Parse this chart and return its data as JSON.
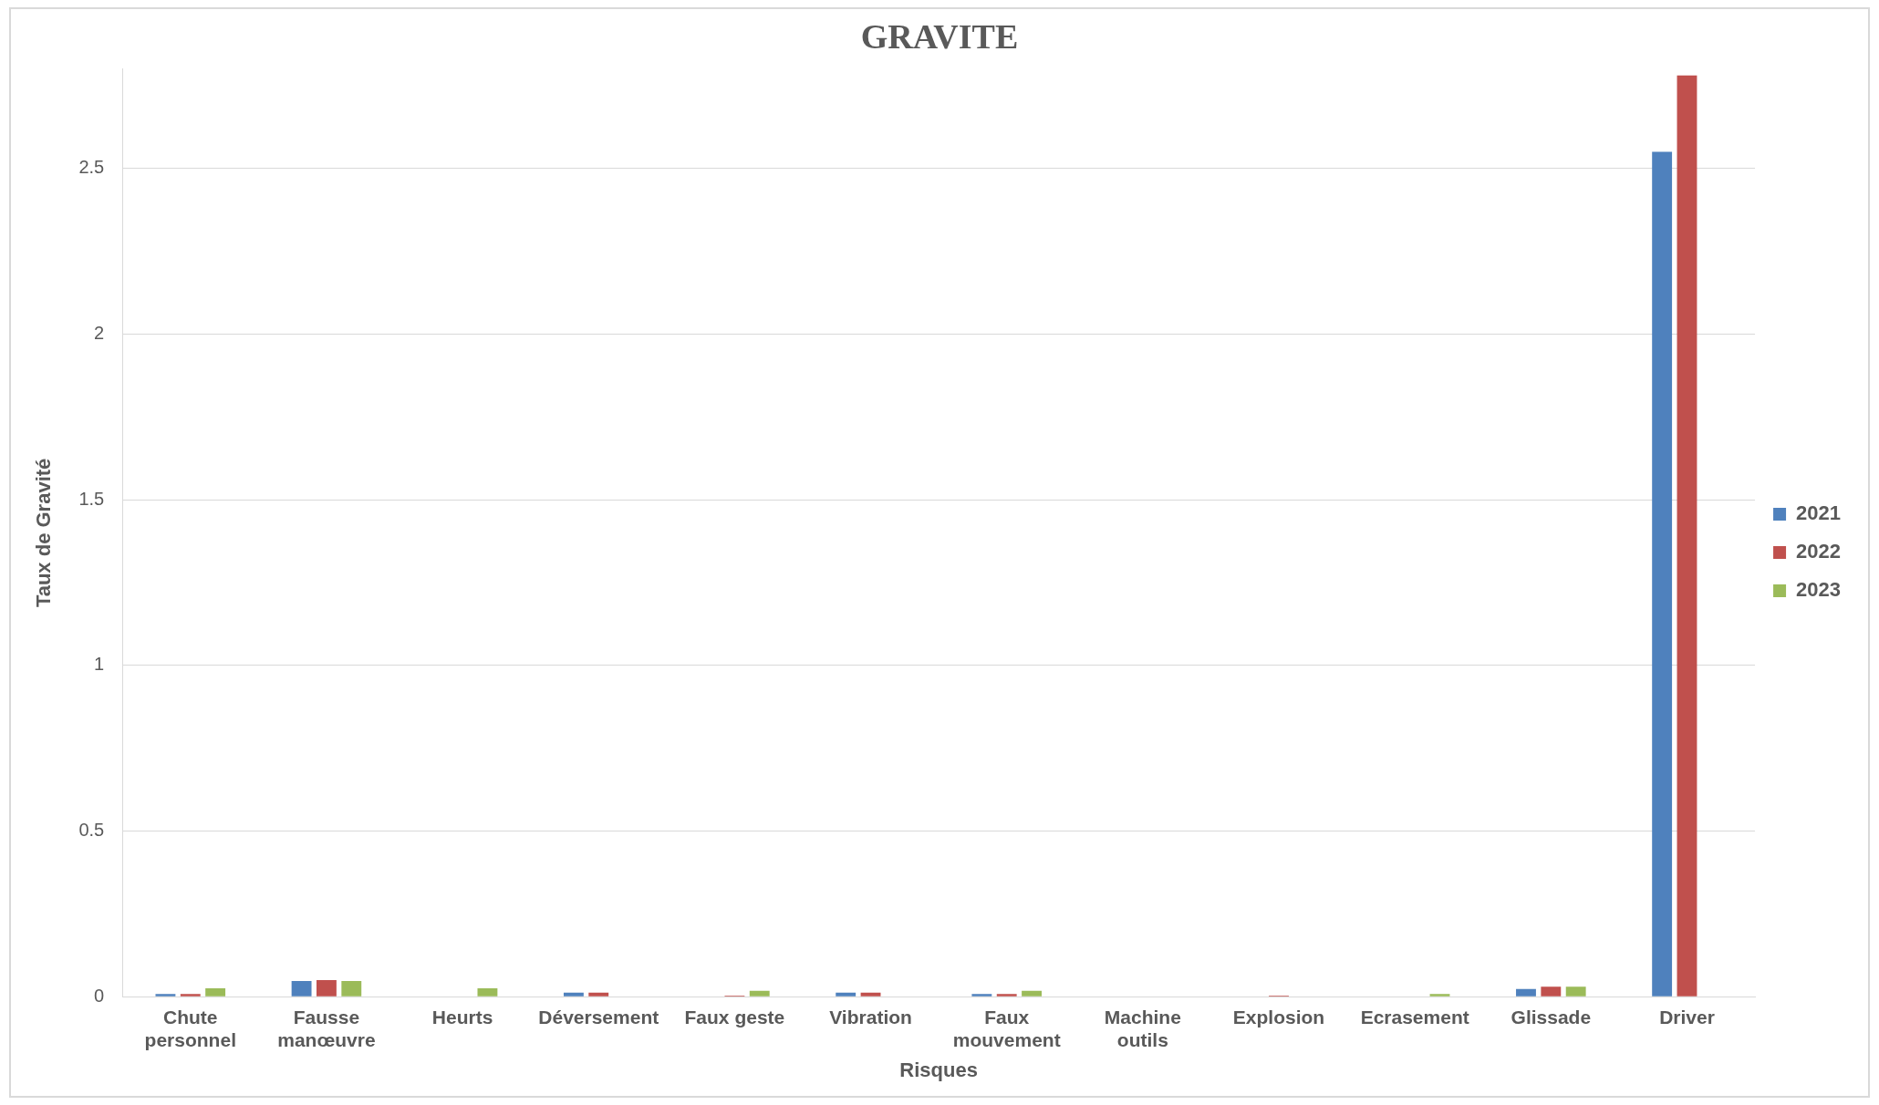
{
  "chart_data": {
    "type": "bar",
    "title": "GRAVITE",
    "xlabel": "Risques",
    "ylabel": "Taux de Gravité",
    "categories": [
      "Chute personnel",
      "Fausse manœuvre",
      "Heurts",
      "Déversement",
      "Faux geste",
      "Vibration",
      "Faux mouvement",
      "Machine outils",
      "Explosion",
      "Ecrasement",
      "Glissade",
      "Driver"
    ],
    "series": [
      {
        "name": "2021",
        "color": "#4f81bd",
        "values": [
          0.008,
          0.047,
          null,
          0.012,
          null,
          0.012,
          0.008,
          0,
          null,
          0,
          0.023,
          2.55
        ]
      },
      {
        "name": "2022",
        "color": "#c0504d",
        "values": [
          0.008,
          0.05,
          null,
          0.012,
          0.003,
          0.012,
          0.008,
          0,
          0.003,
          0,
          0.03,
          2.78
        ]
      },
      {
        "name": "2023",
        "color": "#9bbb59",
        "values": [
          0.025,
          0.047,
          0.025,
          0,
          0.018,
          0,
          0.018,
          null,
          0,
          0.008,
          0.03,
          0
        ]
      }
    ],
    "ylim": [
      0,
      2.8
    ],
    "yticks": [
      0,
      0.5,
      1,
      1.5,
      2,
      2.5
    ],
    "grid": "y",
    "legend": "right"
  }
}
